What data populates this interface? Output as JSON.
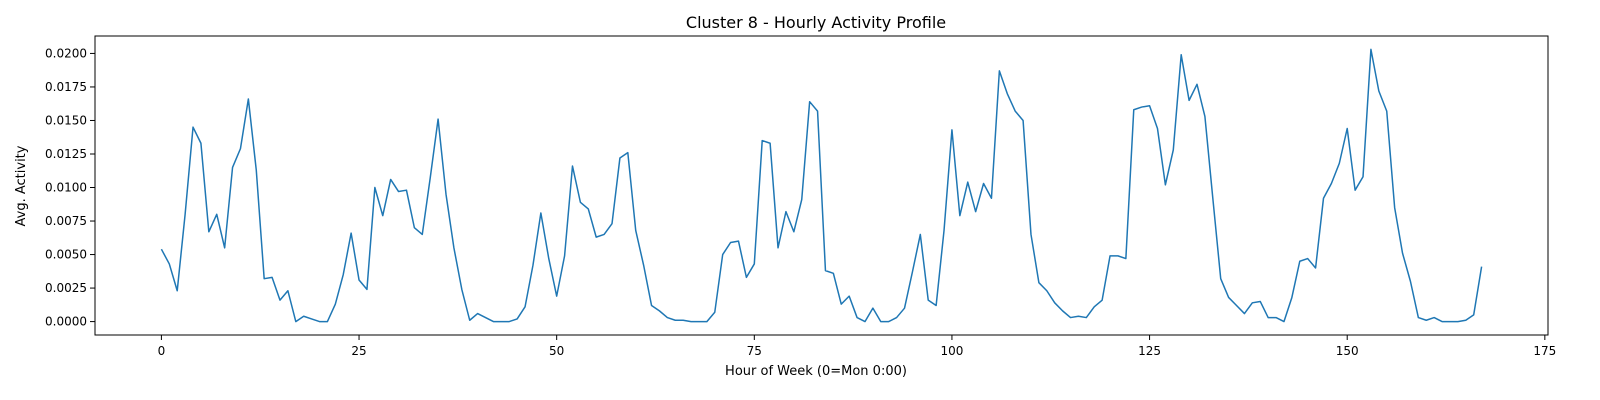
{
  "chart_data": {
    "type": "line",
    "title": "Cluster 8 - Hourly Activity Profile",
    "xlabel": "Hour of Week (0=Mon 0:00)",
    "ylabel": "Avg. Activity",
    "xlim": [
      -8.4,
      175.4
    ],
    "ylim": [
      -0.001,
      0.0213
    ],
    "xticks": [
      0,
      25,
      50,
      75,
      100,
      125,
      150,
      175
    ],
    "xtick_labels": [
      "0",
      "25",
      "50",
      "75",
      "100",
      "125",
      "150",
      "175"
    ],
    "yticks": [
      0,
      0.0025,
      0.005,
      0.0075,
      0.01,
      0.0125,
      0.015,
      0.0175,
      0.02
    ],
    "ytick_labels": [
      "0.0000",
      "0.0025",
      "0.0050",
      "0.0075",
      "0.0100",
      "0.0125",
      "0.0150",
      "0.0175",
      "0.0200"
    ],
    "grid": false,
    "line_color": "#1f77b4",
    "series": [
      {
        "values": [
          0.0054,
          0.0043,
          0.0023,
          0.008,
          0.0145,
          0.0133,
          0.0067,
          0.008,
          0.0055,
          0.0115,
          0.0129,
          0.0166,
          0.0113,
          0.0032,
          0.0033,
          0.0016,
          0.0023,
          0.0,
          0.0004,
          0.0002,
          0.0,
          0.0,
          0.0013,
          0.0035,
          0.0066,
          0.0031,
          0.0024,
          0.01,
          0.0079,
          0.0106,
          0.0097,
          0.0098,
          0.007,
          0.0065,
          0.0107,
          0.0151,
          0.0095,
          0.0055,
          0.0024,
          0.0001,
          0.0006,
          0.0003,
          0.0,
          0.0,
          0.0,
          0.0002,
          0.0011,
          0.0042,
          0.0081,
          0.0047,
          0.0019,
          0.0049,
          0.0116,
          0.0089,
          0.0084,
          0.0063,
          0.0065,
          0.0073,
          0.0122,
          0.0126,
          0.0068,
          0.0042,
          0.0012,
          0.0008,
          0.0003,
          0.0001,
          0.0001,
          0.0,
          0.0,
          0.0,
          0.0007,
          0.005,
          0.0059,
          0.006,
          0.0033,
          0.0043,
          0.0135,
          0.0133,
          0.0055,
          0.0082,
          0.0067,
          0.0091,
          0.0164,
          0.0157,
          0.0038,
          0.0036,
          0.0013,
          0.0019,
          0.0003,
          0.0,
          0.001,
          0.0,
          0.0,
          0.0003,
          0.001,
          0.0037,
          0.0065,
          0.0016,
          0.0012,
          0.0068,
          0.0143,
          0.0079,
          0.0104,
          0.0082,
          0.0103,
          0.0092,
          0.0187,
          0.017,
          0.0157,
          0.015,
          0.0065,
          0.0029,
          0.0023,
          0.0014,
          0.0008,
          0.0003,
          0.0004,
          0.0003,
          0.0011,
          0.0016,
          0.0049,
          0.0049,
          0.0047,
          0.0158,
          0.016,
          0.0161,
          0.0144,
          0.0102,
          0.0128,
          0.0199,
          0.0165,
          0.0177,
          0.0153,
          0.0092,
          0.0032,
          0.0018,
          0.0012,
          0.0006,
          0.0014,
          0.0015,
          0.0003,
          0.0003,
          0.0,
          0.0018,
          0.0045,
          0.0047,
          0.004,
          0.0092,
          0.0103,
          0.0118,
          0.0144,
          0.0098,
          0.0108,
          0.0203,
          0.0172,
          0.0157,
          0.0085,
          0.0051,
          0.003,
          0.0003,
          0.0001,
          0.0003,
          0.0,
          0.0,
          0.0,
          0.0001,
          0.0005,
          0.0041
        ]
      }
    ]
  }
}
